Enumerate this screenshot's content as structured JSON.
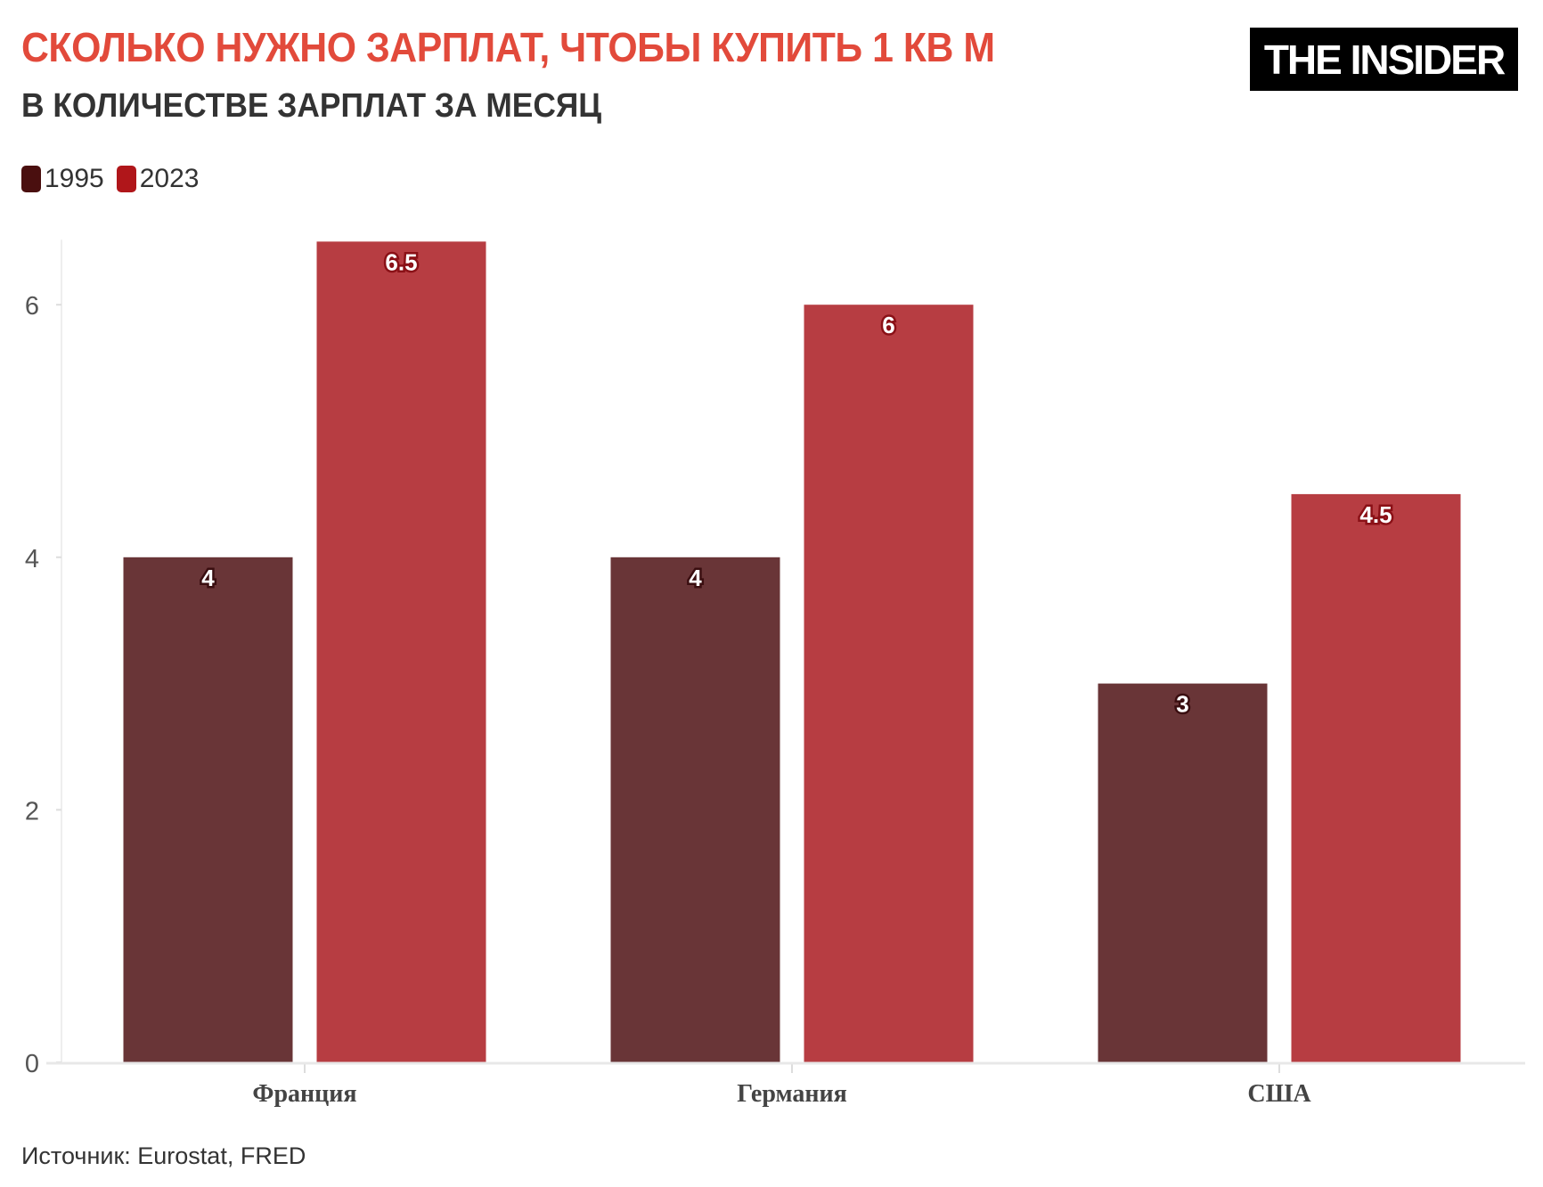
{
  "header": {
    "title": "СКОЛЬКО НУЖНО ЗАРПЛАТ, ЧТОБЫ КУПИТЬ 1 КВ М",
    "subtitle": "В КОЛИЧЕСТВЕ ЗАРПЛАТ ЗА МЕСЯЦ",
    "logo": "THE INSIDER"
  },
  "footer": {
    "source": "Источник: Eurostat, FRED"
  },
  "colors": {
    "title": "#e24a3b",
    "bar_1995": "#693537",
    "bar_2023": "#b73d42",
    "legend_1995": "#4a0f0f",
    "legend_2023": "#b0161a"
  },
  "chart_data": {
    "type": "bar",
    "title": "СКОЛЬКО НУЖНО ЗАРПЛАТ, ЧТОБЫ КУПИТЬ 1 КВ М",
    "subtitle": "В КОЛИЧЕСТВЕ ЗАРПЛАТ ЗА МЕСЯЦ",
    "categories": [
      "Франция",
      "Германия",
      "США"
    ],
    "series": [
      {
        "name": "1995",
        "values": [
          4,
          4,
          3
        ]
      },
      {
        "name": "2023",
        "values": [
          6.5,
          6,
          4.5
        ]
      }
    ],
    "data_labels": [
      [
        "4",
        "4",
        "3"
      ],
      [
        "6.5",
        "6",
        "4.5"
      ]
    ],
    "yticks": [
      0,
      2,
      4,
      6
    ],
    "ylim": [
      0,
      6.5
    ],
    "xlabel": "",
    "ylabel": "",
    "grid": false,
    "legend": "top-left"
  }
}
